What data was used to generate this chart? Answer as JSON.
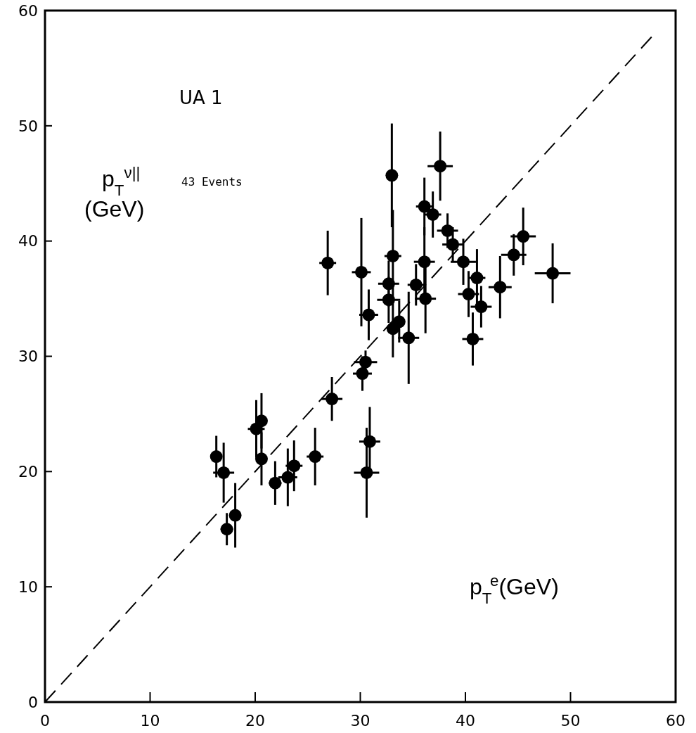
{
  "chart_data": {
    "type": "scatter",
    "xlabel": "p$_{T}$$^{e}$(GeV)",
    "ylabel": "p$_{T}$$^{ν||}$ (GeV)",
    "annotations": [
      "UA 1",
      "43 Events"
    ],
    "xlim": [
      0,
      60
    ],
    "ylim": [
      0,
      60
    ],
    "xticks": [
      0,
      10,
      20,
      30,
      40,
      50,
      60
    ],
    "yticks": [
      0,
      10,
      20,
      30,
      40,
      50,
      60
    ],
    "grid": false,
    "marker": "circle",
    "series": [
      {
        "color": "#000000",
        "x": [
          16.3,
          17.0,
          17.3,
          18.1,
          20.1,
          20.6,
          20.6,
          21.9,
          23.1,
          23.7,
          25.7,
          27.3,
          30.2,
          30.5,
          30.9,
          30.6,
          26.9,
          30.1,
          30.8,
          33.1,
          32.7,
          32.7,
          33.7,
          33.1,
          34.6,
          36.1,
          35.3,
          36.2,
          36.9,
          38.3,
          38.8,
          39.8,
          41.1,
          40.3,
          41.5,
          40.7,
          33.0,
          36.1,
          37.6,
          43.3,
          44.6,
          45.5,
          48.3
        ],
        "values": [
          21.3,
          19.9,
          15.0,
          16.2,
          23.7,
          24.4,
          21.1,
          19.0,
          19.5,
          20.5,
          21.3,
          26.3,
          28.5,
          29.5,
          22.6,
          19.9,
          38.1,
          37.3,
          33.6,
          38.7,
          36.3,
          34.9,
          33.0,
          32.4,
          31.6,
          38.2,
          36.2,
          35.0,
          42.3,
          40.9,
          39.7,
          38.2,
          36.8,
          35.4,
          34.3,
          31.5,
          45.7,
          43.0,
          46.5,
          36.0,
          38.8,
          40.4,
          37.2
        ],
        "errors": [
          1.8,
          2.6,
          1.4,
          2.8,
          2.5,
          2.4,
          2.3,
          1.9,
          2.5,
          2.2,
          2.5,
          1.9,
          1.5,
          1.0,
          3.0,
          3.9,
          2.8,
          4.7,
          2.2,
          4,
          2,
          2,
          1.8,
          2.5,
          4,
          3,
          1.8,
          3,
          2,
          1.5,
          1.5,
          2,
          2.5,
          2,
          1.8,
          2.3,
          4.5,
          2.5,
          3,
          2.7,
          1.8,
          2.5,
          2.6
        ],
        "xerrors": [
          0.5,
          1.0,
          0.6,
          0.5,
          0.8,
          0.5,
          0.3,
          0.6,
          0.9,
          0.8,
          0.8,
          1.0,
          0.9,
          1.1,
          1.0,
          1.2,
          0.8,
          0.9,
          0.9,
          0.8,
          1.0,
          1.1,
          0.5,
          0.5,
          1.0,
          1.0,
          0.8,
          1.0,
          0.8,
          1.0,
          1.0,
          1.2,
          0.8,
          1.0,
          1.0,
          1.0,
          0.3,
          0.8,
          1.2,
          1.1,
          1.2,
          1.2,
          1.7
        ]
      },
      {
        "type": "line",
        "color": "#000000",
        "line_style": "dashed",
        "marker": "none",
        "x": [
          0,
          58
        ],
        "values": [
          0,
          58
        ]
      }
    ]
  }
}
